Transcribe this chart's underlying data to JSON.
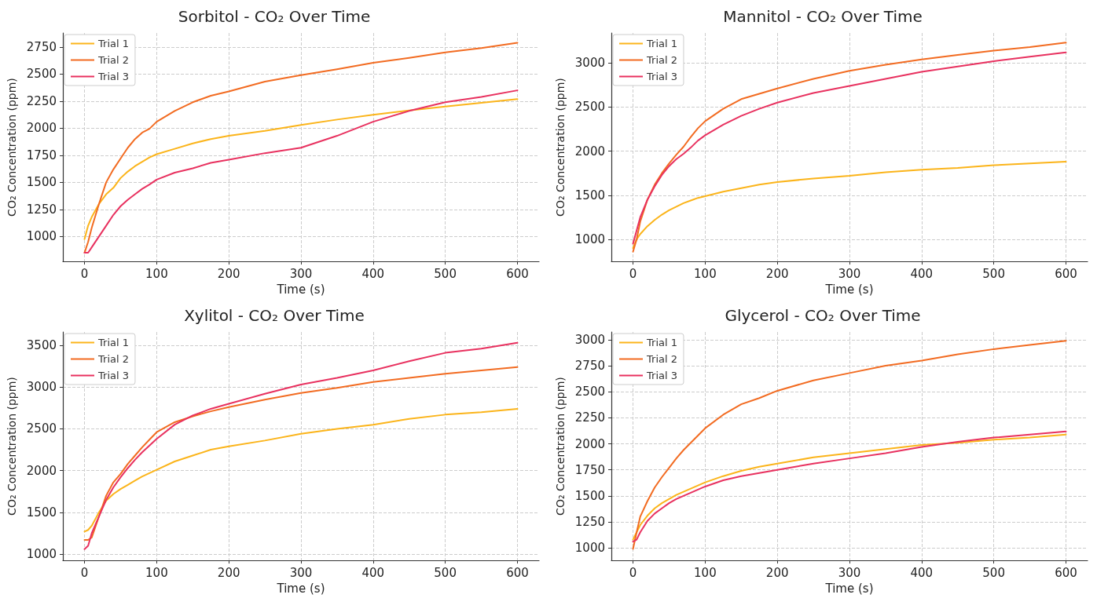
{
  "chart_data": [
    {
      "type": "line",
      "title": "Sorbitol - CO₂ Over Time",
      "xlabel": "Time (s)",
      "ylabel": "CO₂ Concentration (ppm)",
      "legend": "top left",
      "grid": true,
      "marker": "none",
      "x": [
        0,
        5,
        10,
        20,
        30,
        40,
        50,
        60,
        70,
        80,
        90,
        100,
        125,
        150,
        175,
        200,
        250,
        300,
        350,
        400,
        450,
        500,
        550,
        600
      ],
      "xlim": [
        -30,
        630
      ],
      "xticks": [
        0,
        100,
        200,
        300,
        400,
        500,
        600
      ],
      "ylim": [
        770,
        2880
      ],
      "yticks": [
        1000,
        1250,
        1500,
        1750,
        2000,
        2250,
        2500,
        2750
      ],
      "series": [
        {
          "name": "Trial 1",
          "color": "#fbb41a",
          "values": [
            975,
            1100,
            1180,
            1300,
            1390,
            1450,
            1540,
            1600,
            1650,
            1690,
            1730,
            1760,
            1810,
            1860,
            1900,
            1930,
            1975,
            2030,
            2080,
            2125,
            2165,
            2200,
            2235,
            2270
          ]
        },
        {
          "name": "Trial 2",
          "color": "#f26b21",
          "values": [
            850,
            950,
            1080,
            1300,
            1500,
            1620,
            1720,
            1820,
            1900,
            1960,
            1995,
            2060,
            2160,
            2240,
            2300,
            2340,
            2430,
            2490,
            2545,
            2605,
            2650,
            2700,
            2740,
            2790
          ]
        },
        {
          "name": "Trial 3",
          "color": "#e8315f",
          "values": [
            850,
            850,
            900,
            1000,
            1100,
            1200,
            1280,
            1340,
            1390,
            1440,
            1480,
            1525,
            1590,
            1630,
            1680,
            1710,
            1770,
            1820,
            1930,
            2060,
            2160,
            2240,
            2290,
            2350
          ]
        }
      ]
    },
    {
      "type": "line",
      "title": "Mannitol - CO₂ Over Time",
      "xlabel": "Time (s)",
      "ylabel": "CO₂ Concentration (ppm)",
      "legend": "top left",
      "grid": true,
      "marker": "none",
      "x": [
        0,
        5,
        10,
        20,
        30,
        40,
        50,
        60,
        70,
        80,
        90,
        100,
        125,
        150,
        175,
        200,
        250,
        300,
        350,
        400,
        450,
        500,
        550,
        600
      ],
      "xlim": [
        -30,
        630
      ],
      "xticks": [
        0,
        100,
        200,
        300,
        400,
        500,
        600
      ],
      "ylim": [
        750,
        3340
      ],
      "yticks": [
        1000,
        1500,
        2000,
        2500,
        3000
      ],
      "series": [
        {
          "name": "Trial 1",
          "color": "#fbb41a",
          "values": [
            900,
            1000,
            1060,
            1150,
            1220,
            1280,
            1330,
            1370,
            1410,
            1440,
            1470,
            1490,
            1540,
            1580,
            1620,
            1650,
            1690,
            1720,
            1760,
            1790,
            1810,
            1840,
            1860,
            1880
          ]
        },
        {
          "name": "Trial 2",
          "color": "#f26b21",
          "values": [
            860,
            1000,
            1200,
            1450,
            1620,
            1750,
            1860,
            1960,
            2050,
            2160,
            2260,
            2340,
            2480,
            2590,
            2650,
            2710,
            2820,
            2910,
            2980,
            3040,
            3090,
            3140,
            3180,
            3230
          ]
        },
        {
          "name": "Trial 3",
          "color": "#e8315f",
          "values": [
            950,
            1100,
            1250,
            1450,
            1600,
            1730,
            1830,
            1910,
            1970,
            2040,
            2120,
            2180,
            2300,
            2400,
            2480,
            2550,
            2660,
            2740,
            2820,
            2900,
            2960,
            3020,
            3070,
            3120
          ]
        }
      ]
    },
    {
      "type": "line",
      "title": "Xylitol - CO₂ Over Time",
      "xlabel": "Time (s)",
      "ylabel": "CO₂ Concentration (ppm)",
      "legend": "top left",
      "grid": true,
      "marker": "none",
      "x": [
        0,
        5,
        10,
        20,
        30,
        40,
        50,
        60,
        70,
        80,
        90,
        100,
        125,
        150,
        175,
        200,
        250,
        300,
        350,
        400,
        450,
        500,
        550,
        600
      ],
      "xlim": [
        -30,
        630
      ],
      "xticks": [
        0,
        100,
        200,
        300,
        400,
        500,
        600
      ],
      "ylim": [
        925,
        3660
      ],
      "yticks": [
        1000,
        1500,
        2000,
        2500,
        3000,
        3500
      ],
      "series": [
        {
          "name": "Trial 1",
          "color": "#fbb41a",
          "values": [
            1270,
            1290,
            1340,
            1500,
            1640,
            1720,
            1780,
            1830,
            1880,
            1930,
            1970,
            2010,
            2110,
            2180,
            2250,
            2290,
            2360,
            2440,
            2500,
            2550,
            2620,
            2670,
            2700,
            2740
          ]
        },
        {
          "name": "Trial 2",
          "color": "#f26b21",
          "values": [
            1170,
            1170,
            1200,
            1450,
            1700,
            1860,
            1960,
            2080,
            2180,
            2280,
            2370,
            2460,
            2580,
            2650,
            2710,
            2760,
            2850,
            2930,
            2990,
            3060,
            3110,
            3160,
            3200,
            3240
          ]
        },
        {
          "name": "Trial 3",
          "color": "#e8315f",
          "values": [
            1060,
            1100,
            1250,
            1450,
            1650,
            1800,
            1920,
            2030,
            2130,
            2220,
            2300,
            2380,
            2550,
            2660,
            2740,
            2800,
            2920,
            3030,
            3110,
            3200,
            3310,
            3410,
            3460,
            3530
          ]
        }
      ]
    },
    {
      "type": "line",
      "title": "Glycerol - CO₂ Over Time",
      "xlabel": "Time (s)",
      "ylabel": "CO₂ Concentration (ppm)",
      "legend": "top left",
      "grid": true,
      "marker": "none",
      "x": [
        0,
        5,
        10,
        20,
        30,
        40,
        50,
        60,
        70,
        80,
        90,
        100,
        125,
        150,
        175,
        200,
        250,
        300,
        350,
        400,
        450,
        500,
        550,
        600
      ],
      "xlim": [
        -30,
        630
      ],
      "xticks": [
        0,
        100,
        200,
        300,
        400,
        500,
        600
      ],
      "ylim": [
        880,
        3075
      ],
      "yticks": [
        1000,
        1250,
        1500,
        1750,
        2000,
        2250,
        2500,
        2750,
        3000
      ],
      "series": [
        {
          "name": "Trial 1",
          "color": "#fbb41a",
          "values": [
            1080,
            1150,
            1220,
            1310,
            1380,
            1430,
            1470,
            1510,
            1540,
            1570,
            1600,
            1630,
            1690,
            1740,
            1780,
            1810,
            1870,
            1910,
            1950,
            1990,
            2010,
            2040,
            2060,
            2090
          ]
        },
        {
          "name": "Trial 2",
          "color": "#f26b21",
          "values": [
            990,
            1150,
            1300,
            1450,
            1580,
            1680,
            1770,
            1860,
            1940,
            2010,
            2080,
            2150,
            2280,
            2380,
            2440,
            2510,
            2610,
            2680,
            2750,
            2800,
            2860,
            2910,
            2950,
            2990
          ]
        },
        {
          "name": "Trial 3",
          "color": "#e8315f",
          "values": [
            1060,
            1080,
            1150,
            1260,
            1330,
            1380,
            1430,
            1470,
            1500,
            1530,
            1560,
            1590,
            1650,
            1690,
            1720,
            1750,
            1810,
            1860,
            1910,
            1970,
            2020,
            2060,
            2090,
            2120
          ]
        }
      ]
    }
  ]
}
